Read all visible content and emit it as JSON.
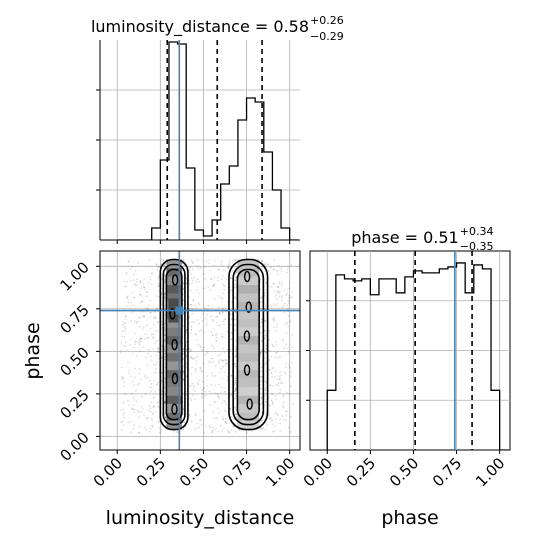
{
  "chart_data": {
    "type": "corner",
    "parameters": [
      "luminosity_distance",
      "phase"
    ],
    "truth": {
      "luminosity_distance": 0.36,
      "phase": 0.74
    },
    "truth_color": "#4682b4",
    "panels": [
      {
        "kind": "hist1d",
        "parameter": "luminosity_distance",
        "title_prefix": "luminosity_distance = ",
        "value": "0.58",
        "upper": "+0.26",
        "lower": "−0.29",
        "xlim": [
          -0.1,
          1.06
        ],
        "ylim": [
          0,
          1.0
        ],
        "bin_edges": [
          0.0,
          0.05,
          0.1,
          0.15,
          0.2,
          0.25,
          0.3,
          0.35,
          0.4,
          0.45,
          0.5,
          0.55,
          0.6,
          0.65,
          0.7,
          0.75,
          0.8,
          0.85,
          0.9,
          0.95,
          1.0,
          1.05
        ],
        "counts": [
          0,
          0,
          0,
          0,
          0.06,
          0.4,
          0.99,
          0.98,
          0.36,
          0.05,
          0.02,
          0.1,
          0.28,
          0.37,
          0.6,
          0.71,
          0.69,
          0.44,
          0.25,
          0.06,
          0
        ],
        "quantile_lines": [
          0.29,
          0.58,
          0.84
        ]
      },
      {
        "kind": "hist1d",
        "parameter": "phase",
        "title_prefix": "phase = ",
        "value": "0.51",
        "upper": "+0.34",
        "lower": "−0.35",
        "xlim": [
          -0.1,
          1.06
        ],
        "ylim": [
          0,
          1.0
        ],
        "bin_edges": [
          0.0,
          0.05,
          0.1,
          0.15,
          0.2,
          0.25,
          0.3,
          0.35,
          0.4,
          0.45,
          0.5,
          0.55,
          0.6,
          0.65,
          0.7,
          0.75,
          0.8,
          0.85,
          0.9,
          0.95,
          1.0,
          1.05
        ],
        "counts": [
          0.3,
          0.88,
          0.86,
          0.85,
          0.86,
          0.78,
          0.86,
          0.86,
          0.79,
          0.87,
          0.9,
          0.89,
          0.89,
          0.91,
          0.92,
          0.94,
          0.79,
          0.93,
          0.91,
          0.3,
          0
        ],
        "quantile_lines": [
          0.16,
          0.51,
          0.84
        ]
      },
      {
        "kind": "hist2d",
        "x": "luminosity_distance",
        "y": "phase",
        "xlim": [
          -0.1,
          1.06
        ],
        "ylim": [
          -0.08,
          1.09
        ],
        "clusters": [
          {
            "x_center": 0.33,
            "x_width": 0.05,
            "y_range": [
              0.04,
              1.04
            ],
            "dense_y": 0.74
          },
          {
            "x_center": 0.76,
            "x_width": 0.07,
            "y_range": [
              0.04,
              1.04
            ],
            "dense_y": null
          }
        ]
      }
    ],
    "x_ticks": [
      "0.00",
      "0.25",
      "0.50",
      "0.75",
      "1.00"
    ],
    "y_ticks": [
      "0.00",
      "0.25",
      "0.50",
      "0.75",
      "1.00"
    ],
    "tick_values": [
      0,
      0.25,
      0.5,
      0.75,
      1.0
    ],
    "xlabels": [
      "luminosity_distance",
      "phase"
    ],
    "ylabel": "phase",
    "grid": true
  }
}
